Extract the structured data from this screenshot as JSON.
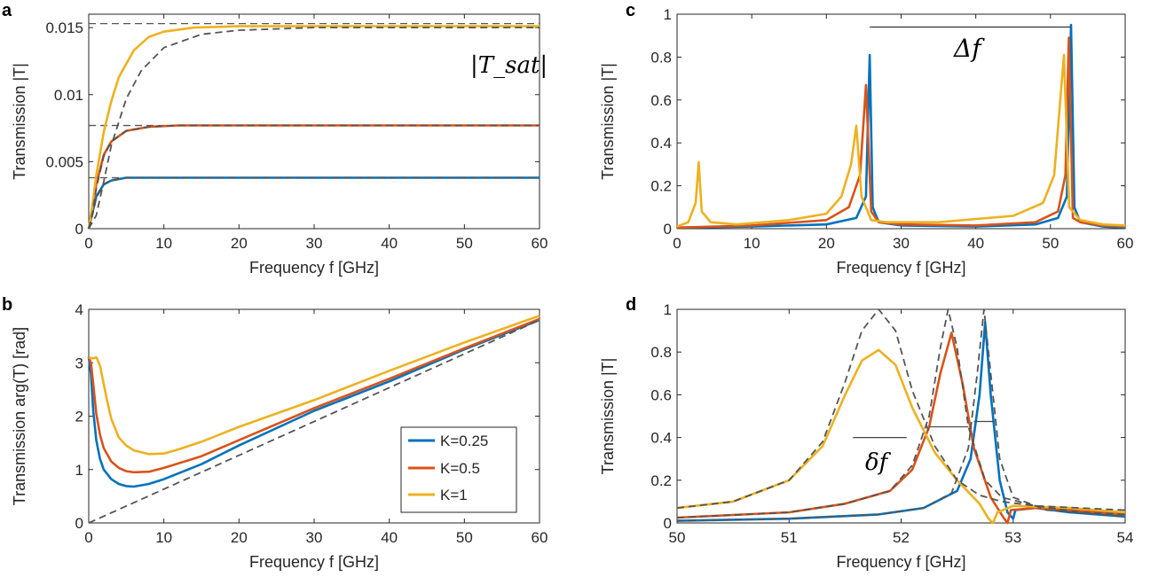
{
  "colors": {
    "k025": "#0072BD",
    "k05": "#D95319",
    "k1": "#EDB120",
    "reference": "#555555",
    "axis": "#262626"
  },
  "chart_data": [
    {
      "id": "a",
      "panel_label": "a",
      "type": "line",
      "xlabel": "Frequency f  [GHz]",
      "ylabel": "Transmission |T|",
      "xlim": [
        0,
        60
      ],
      "ylim": [
        0,
        0.016
      ],
      "xticks": [
        0,
        10,
        20,
        30,
        40,
        50,
        60
      ],
      "xtick_labels": [
        "0",
        "10",
        "20",
        "30",
        "40",
        "50",
        "60"
      ],
      "yticks": [
        0,
        0.005,
        0.01,
        0.015
      ],
      "ytick_labels": [
        "0",
        "0.005",
        "0.01",
        "0.015"
      ],
      "annotation": "|T_sat|",
      "reference_lines": [
        {
          "y": 0.0153
        },
        {
          "y": 0.0077
        },
        {
          "y": 0.0038
        }
      ],
      "series": [
        {
          "name": "K=0.25",
          "color_key": "k025",
          "x": [
            0,
            0.5,
            1,
            2,
            3,
            5,
            8,
            12,
            20,
            30,
            40,
            50,
            60
          ],
          "y": [
            0,
            0.0012,
            0.0024,
            0.0033,
            0.0036,
            0.0038,
            0.0038,
            0.0038,
            0.0038,
            0.0038,
            0.0038,
            0.0038,
            0.0038
          ]
        },
        {
          "name": "K=0.5",
          "color_key": "k05",
          "x": [
            0,
            0.5,
            1,
            2,
            3,
            5,
            8,
            12,
            20,
            30,
            40,
            50,
            60
          ],
          "y": [
            0,
            0.0015,
            0.0033,
            0.0055,
            0.0065,
            0.0073,
            0.0076,
            0.0077,
            0.0077,
            0.0077,
            0.0077,
            0.0077,
            0.0077
          ]
        },
        {
          "name": "K=1",
          "color_key": "k1",
          "x": [
            0,
            0.5,
            1,
            2,
            3,
            4,
            6,
            8,
            10,
            14,
            20,
            30,
            40,
            50,
            60
          ],
          "y": [
            0,
            0.0018,
            0.004,
            0.0072,
            0.0095,
            0.0113,
            0.0133,
            0.0143,
            0.0147,
            0.015,
            0.0151,
            0.0151,
            0.0151,
            0.0151,
            0.0151
          ]
        },
        {
          "name": "",
          "style": "dashed",
          "color_key": "reference",
          "x": [
            0,
            1,
            2,
            3,
            5,
            7,
            10,
            15,
            20,
            25,
            30,
            40,
            50,
            60
          ],
          "y": [
            0,
            0.001,
            0.0035,
            0.0062,
            0.0097,
            0.0118,
            0.0135,
            0.0145,
            0.0148,
            0.0149,
            0.015,
            0.015,
            0.015,
            0.015
          ]
        },
        {
          "name": "",
          "style": "dashed",
          "color_key": "reference",
          "x": [
            0,
            0.5,
            1,
            2,
            3,
            5,
            8,
            12,
            20,
            30,
            40,
            50,
            60
          ],
          "y": [
            0,
            0.0012,
            0.003,
            0.0054,
            0.0065,
            0.0073,
            0.0076,
            0.0077,
            0.0077,
            0.0077,
            0.0077,
            0.0077,
            0.0077
          ]
        },
        {
          "name": "",
          "style": "dashed",
          "color_key": "reference",
          "x": [
            0,
            0.5,
            1,
            2,
            3,
            5,
            8,
            12,
            20,
            30,
            40,
            50,
            60
          ],
          "y": [
            0,
            0.001,
            0.0023,
            0.0033,
            0.0036,
            0.0038,
            0.0038,
            0.0038,
            0.0038,
            0.0038,
            0.0038,
            0.0038,
            0.0038
          ]
        }
      ]
    },
    {
      "id": "b",
      "panel_label": "b",
      "type": "line",
      "xlabel": "Frequency f  [GHz]",
      "ylabel": "Transmission arg(T)  [rad]",
      "xlim": [
        0,
        60
      ],
      "ylim": [
        0,
        4
      ],
      "xticks": [
        0,
        10,
        20,
        30,
        40,
        50,
        60
      ],
      "xtick_labels": [
        "0",
        "10",
        "20",
        "30",
        "40",
        "50",
        "60"
      ],
      "yticks": [
        0,
        1,
        2,
        3,
        4
      ],
      "ytick_labels": [
        "0",
        "1",
        "2",
        "3",
        "4"
      ],
      "legend": {
        "placement": "lower-right",
        "entries": [
          "K=0.25",
          "K=0.5",
          "K=1"
        ]
      },
      "series": [
        {
          "name": "K=0.25",
          "color_key": "k025",
          "x": [
            0,
            0.3,
            0.6,
            1,
            1.5,
            2,
            3,
            4,
            5,
            6,
            8,
            10,
            15,
            20,
            30,
            40,
            50,
            60
          ],
          "y": [
            3.1,
            2.8,
            2.1,
            1.55,
            1.2,
            1.0,
            0.82,
            0.73,
            0.69,
            0.68,
            0.73,
            0.82,
            1.1,
            1.45,
            2.1,
            2.65,
            3.25,
            3.8
          ]
        },
        {
          "name": "K=0.5",
          "color_key": "k05",
          "x": [
            0,
            0.3,
            0.6,
            1,
            1.5,
            2,
            3,
            4,
            5,
            6,
            8,
            10,
            15,
            20,
            30,
            40,
            50,
            60
          ],
          "y": [
            3.1,
            3.0,
            2.6,
            2.05,
            1.65,
            1.4,
            1.15,
            1.03,
            0.97,
            0.95,
            0.96,
            1.03,
            1.25,
            1.55,
            2.15,
            2.7,
            3.27,
            3.82
          ]
        },
        {
          "name": "K=1",
          "color_key": "k1",
          "x": [
            0,
            0.5,
            1,
            1.5,
            2,
            2.5,
            3,
            4,
            5,
            6,
            8,
            10,
            12,
            15,
            20,
            30,
            40,
            50,
            60
          ],
          "y": [
            3.1,
            3.08,
            3.1,
            2.95,
            2.6,
            2.25,
            1.95,
            1.6,
            1.45,
            1.36,
            1.29,
            1.3,
            1.38,
            1.52,
            1.8,
            2.3,
            2.85,
            3.38,
            3.88
          ]
        },
        {
          "name": "",
          "style": "dashed",
          "color_key": "reference",
          "x": [
            0,
            60
          ],
          "y": [
            0,
            3.8
          ]
        }
      ]
    },
    {
      "id": "c",
      "panel_label": "c",
      "type": "line",
      "xlabel": "Frequency f  [GHz]",
      "ylabel": "Transmission |T|",
      "xlim": [
        0,
        60
      ],
      "ylim": [
        0,
        1
      ],
      "xticks": [
        0,
        10,
        20,
        30,
        40,
        50,
        60
      ],
      "xtick_labels": [
        "0",
        "10",
        "20",
        "30",
        "40",
        "50",
        "60"
      ],
      "yticks": [
        0,
        0.2,
        0.4,
        0.6,
        0.8,
        1
      ],
      "ytick_labels": [
        "0",
        "0.2",
        "0.4",
        "0.6",
        "0.8",
        "1"
      ],
      "annotation": "Δf",
      "bracket": {
        "x_from": 25.8,
        "x_to": 52.7,
        "y": 0.94
      },
      "series": [
        {
          "name": "K=0.25",
          "color_key": "k025",
          "x": [
            0,
            10,
            20,
            24,
            25.3,
            25.8,
            26.2,
            27,
            30,
            40,
            48,
            51,
            52.2,
            52.75,
            53.2,
            54,
            57,
            60
          ],
          "y": [
            0.005,
            0.01,
            0.02,
            0.05,
            0.15,
            0.81,
            0.1,
            0.03,
            0.015,
            0.01,
            0.02,
            0.05,
            0.15,
            0.95,
            0.1,
            0.03,
            0.01,
            0.005
          ]
        },
        {
          "name": "K=0.5",
          "color_key": "k05",
          "x": [
            0,
            10,
            20,
            23,
            24.5,
            25.3,
            26,
            27,
            30,
            40,
            48,
            51,
            52,
            52.45,
            53,
            54,
            57,
            60
          ],
          "y": [
            0.005,
            0.015,
            0.04,
            0.1,
            0.25,
            0.67,
            0.08,
            0.03,
            0.02,
            0.015,
            0.03,
            0.08,
            0.25,
            0.89,
            0.05,
            0.03,
            0.015,
            0.01
          ]
        },
        {
          "name": "K=1",
          "color_key": "k1",
          "x": [
            0,
            1.5,
            2.5,
            2.9,
            3.3,
            4.5,
            8,
            15,
            20,
            22,
            23.3,
            24,
            24.7,
            26,
            28,
            35,
            45,
            49,
            50.5,
            51.8,
            52.5,
            54,
            57,
            60
          ],
          "y": [
            0.01,
            0.03,
            0.12,
            0.31,
            0.08,
            0.03,
            0.02,
            0.04,
            0.07,
            0.15,
            0.3,
            0.48,
            0.15,
            0.04,
            0.03,
            0.03,
            0.06,
            0.12,
            0.25,
            0.81,
            0.1,
            0.04,
            0.02,
            0.015
          ]
        }
      ]
    },
    {
      "id": "d",
      "panel_label": "d",
      "type": "line",
      "xlabel": "Frequency f  [GHz]",
      "ylabel": "Transmission |T|",
      "xlim": [
        50,
        54
      ],
      "ylim": [
        0,
        1
      ],
      "xticks": [
        50,
        51,
        52,
        53,
        54
      ],
      "xtick_labels": [
        "50",
        "51",
        "52",
        "53",
        "54"
      ],
      "yticks": [
        0,
        0.2,
        0.4,
        0.6,
        0.8,
        1
      ],
      "ytick_labels": [
        "0",
        "0.2",
        "0.4",
        "0.6",
        "0.8",
        "1"
      ],
      "annotation": "δf",
      "widths": [
        {
          "x_from": 51.57,
          "x_to": 52.05,
          "y": 0.4
        },
        {
          "x_from": 52.25,
          "x_to": 52.6,
          "y": 0.45
        },
        {
          "x_from": 52.65,
          "x_to": 52.82,
          "y": 0.475
        }
      ],
      "series": [
        {
          "name": "K=0.25",
          "color_key": "k025",
          "x": [
            50,
            51,
            51.8,
            52.2,
            52.5,
            52.62,
            52.7,
            52.75,
            52.8,
            52.88,
            52.95,
            53.0,
            53.02,
            53.2,
            53.5,
            54
          ],
          "y": [
            0.01,
            0.02,
            0.04,
            0.07,
            0.15,
            0.3,
            0.6,
            0.94,
            0.6,
            0.2,
            0.05,
            0.02,
            0.06,
            0.07,
            0.05,
            0.03
          ]
        },
        {
          "name": "K=0.5",
          "color_key": "k05",
          "x": [
            50,
            51,
            51.5,
            51.9,
            52.1,
            52.25,
            52.35,
            52.45,
            52.55,
            52.65,
            52.8,
            52.92,
            52.95,
            52.98,
            53.2,
            53.5,
            54
          ],
          "y": [
            0.025,
            0.05,
            0.09,
            0.15,
            0.25,
            0.45,
            0.7,
            0.89,
            0.65,
            0.35,
            0.12,
            0.02,
            0.0,
            0.06,
            0.07,
            0.06,
            0.04
          ]
        },
        {
          "name": "K=1",
          "color_key": "k1",
          "x": [
            50,
            50.5,
            51,
            51.3,
            51.5,
            51.65,
            51.8,
            51.95,
            52.1,
            52.3,
            52.5,
            52.7,
            52.78,
            52.82,
            52.86,
            53,
            53.5,
            54
          ],
          "y": [
            0.07,
            0.1,
            0.2,
            0.36,
            0.6,
            0.76,
            0.81,
            0.74,
            0.54,
            0.33,
            0.2,
            0.09,
            0.02,
            0.0,
            0.05,
            0.08,
            0.07,
            0.05
          ]
        },
        {
          "name": "",
          "style": "dashed",
          "color_key": "reference",
          "x": [
            50,
            50.5,
            51,
            51.3,
            51.5,
            51.65,
            51.8,
            51.95,
            52.1,
            52.3,
            52.5,
            52.7,
            52.9,
            53.2,
            53.6,
            54
          ],
          "y": [
            0.07,
            0.1,
            0.2,
            0.38,
            0.66,
            0.9,
            1.0,
            0.9,
            0.62,
            0.36,
            0.2,
            0.13,
            0.1,
            0.08,
            0.07,
            0.06
          ]
        },
        {
          "name": "",
          "style": "dashed",
          "color_key": "reference",
          "x": [
            50,
            51,
            51.5,
            51.9,
            52.1,
            52.25,
            52.35,
            52.42,
            52.5,
            52.6,
            52.75,
            52.9,
            53.2,
            53.6,
            54
          ],
          "y": [
            0.025,
            0.05,
            0.09,
            0.15,
            0.27,
            0.5,
            0.82,
            1.0,
            0.82,
            0.45,
            0.2,
            0.12,
            0.08,
            0.05,
            0.04
          ]
        },
        {
          "name": "",
          "style": "dashed",
          "color_key": "reference",
          "x": [
            50,
            51,
            51.8,
            52.2,
            52.45,
            52.6,
            52.68,
            52.74,
            52.8,
            52.88,
            53.0,
            53.3,
            54
          ],
          "y": [
            0.01,
            0.02,
            0.04,
            0.07,
            0.14,
            0.35,
            0.7,
            1.0,
            0.7,
            0.3,
            0.12,
            0.06,
            0.03
          ]
        }
      ]
    }
  ]
}
